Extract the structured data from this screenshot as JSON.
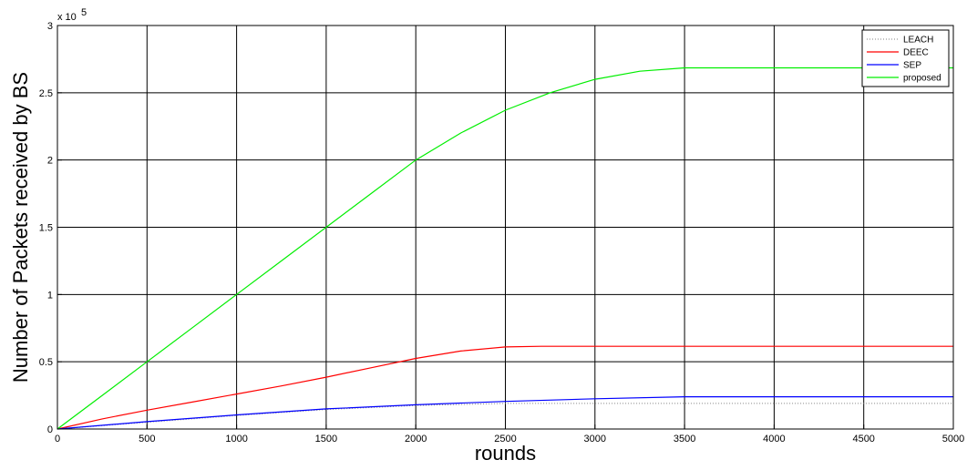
{
  "chart_data": {
    "type": "line",
    "title": "",
    "xlabel": "rounds",
    "ylabel": "Number of Packets received by BS",
    "y_multiplier": "x 10",
    "y_multiplier_exponent": "5",
    "xlim": [
      0,
      5000
    ],
    "ylim": [
      0,
      3
    ],
    "xticks": [
      0,
      500,
      1000,
      1500,
      2000,
      2500,
      3000,
      3500,
      4000,
      4500,
      5000
    ],
    "yticks": [
      0,
      0.5,
      1,
      1.5,
      2,
      2.5,
      3
    ],
    "ytick_labels": [
      "0",
      "0.5",
      "1",
      "1.5",
      "2",
      "2.5",
      "3"
    ],
    "grid": true,
    "legend_position": "top-right",
    "series": [
      {
        "name": "LEACH",
        "color": "#808080",
        "style": "dotted",
        "x": [
          0,
          500,
          1000,
          1500,
          2000,
          2500,
          2600,
          3000,
          3500,
          4000,
          4500,
          5000
        ],
        "y": [
          0,
          0.05,
          0.1,
          0.145,
          0.175,
          0.19,
          0.19,
          0.19,
          0.19,
          0.19,
          0.19,
          0.19
        ]
      },
      {
        "name": "DEEC",
        "color": "#ff0000",
        "style": "solid",
        "x": [
          0,
          250,
          500,
          750,
          1000,
          1250,
          1500,
          1750,
          2000,
          2250,
          2500,
          2700,
          3000,
          3500,
          4000,
          4500,
          5000
        ],
        "y": [
          0,
          0.075,
          0.14,
          0.2,
          0.26,
          0.32,
          0.385,
          0.455,
          0.525,
          0.58,
          0.61,
          0.615,
          0.615,
          0.615,
          0.615,
          0.615,
          0.615
        ]
      },
      {
        "name": "SEP",
        "color": "#0000ff",
        "style": "solid",
        "x": [
          0,
          500,
          1000,
          1500,
          2000,
          2500,
          3000,
          3500,
          4000,
          4500,
          5000
        ],
        "y": [
          0,
          0.055,
          0.105,
          0.15,
          0.18,
          0.205,
          0.225,
          0.24,
          0.24,
          0.24,
          0.24
        ]
      },
      {
        "name": "proposed",
        "color": "#00ee00",
        "style": "solid",
        "x": [
          0,
          250,
          500,
          750,
          1000,
          1250,
          1500,
          1750,
          2000,
          2250,
          2500,
          2750,
          3000,
          3250,
          3500,
          3750,
          4000,
          4500,
          5000
        ],
        "y": [
          0,
          0.25,
          0.5,
          0.75,
          1.0,
          1.25,
          1.5,
          1.75,
          2.0,
          2.2,
          2.37,
          2.5,
          2.6,
          2.66,
          2.685,
          2.685,
          2.685,
          2.685,
          2.685
        ]
      }
    ]
  }
}
